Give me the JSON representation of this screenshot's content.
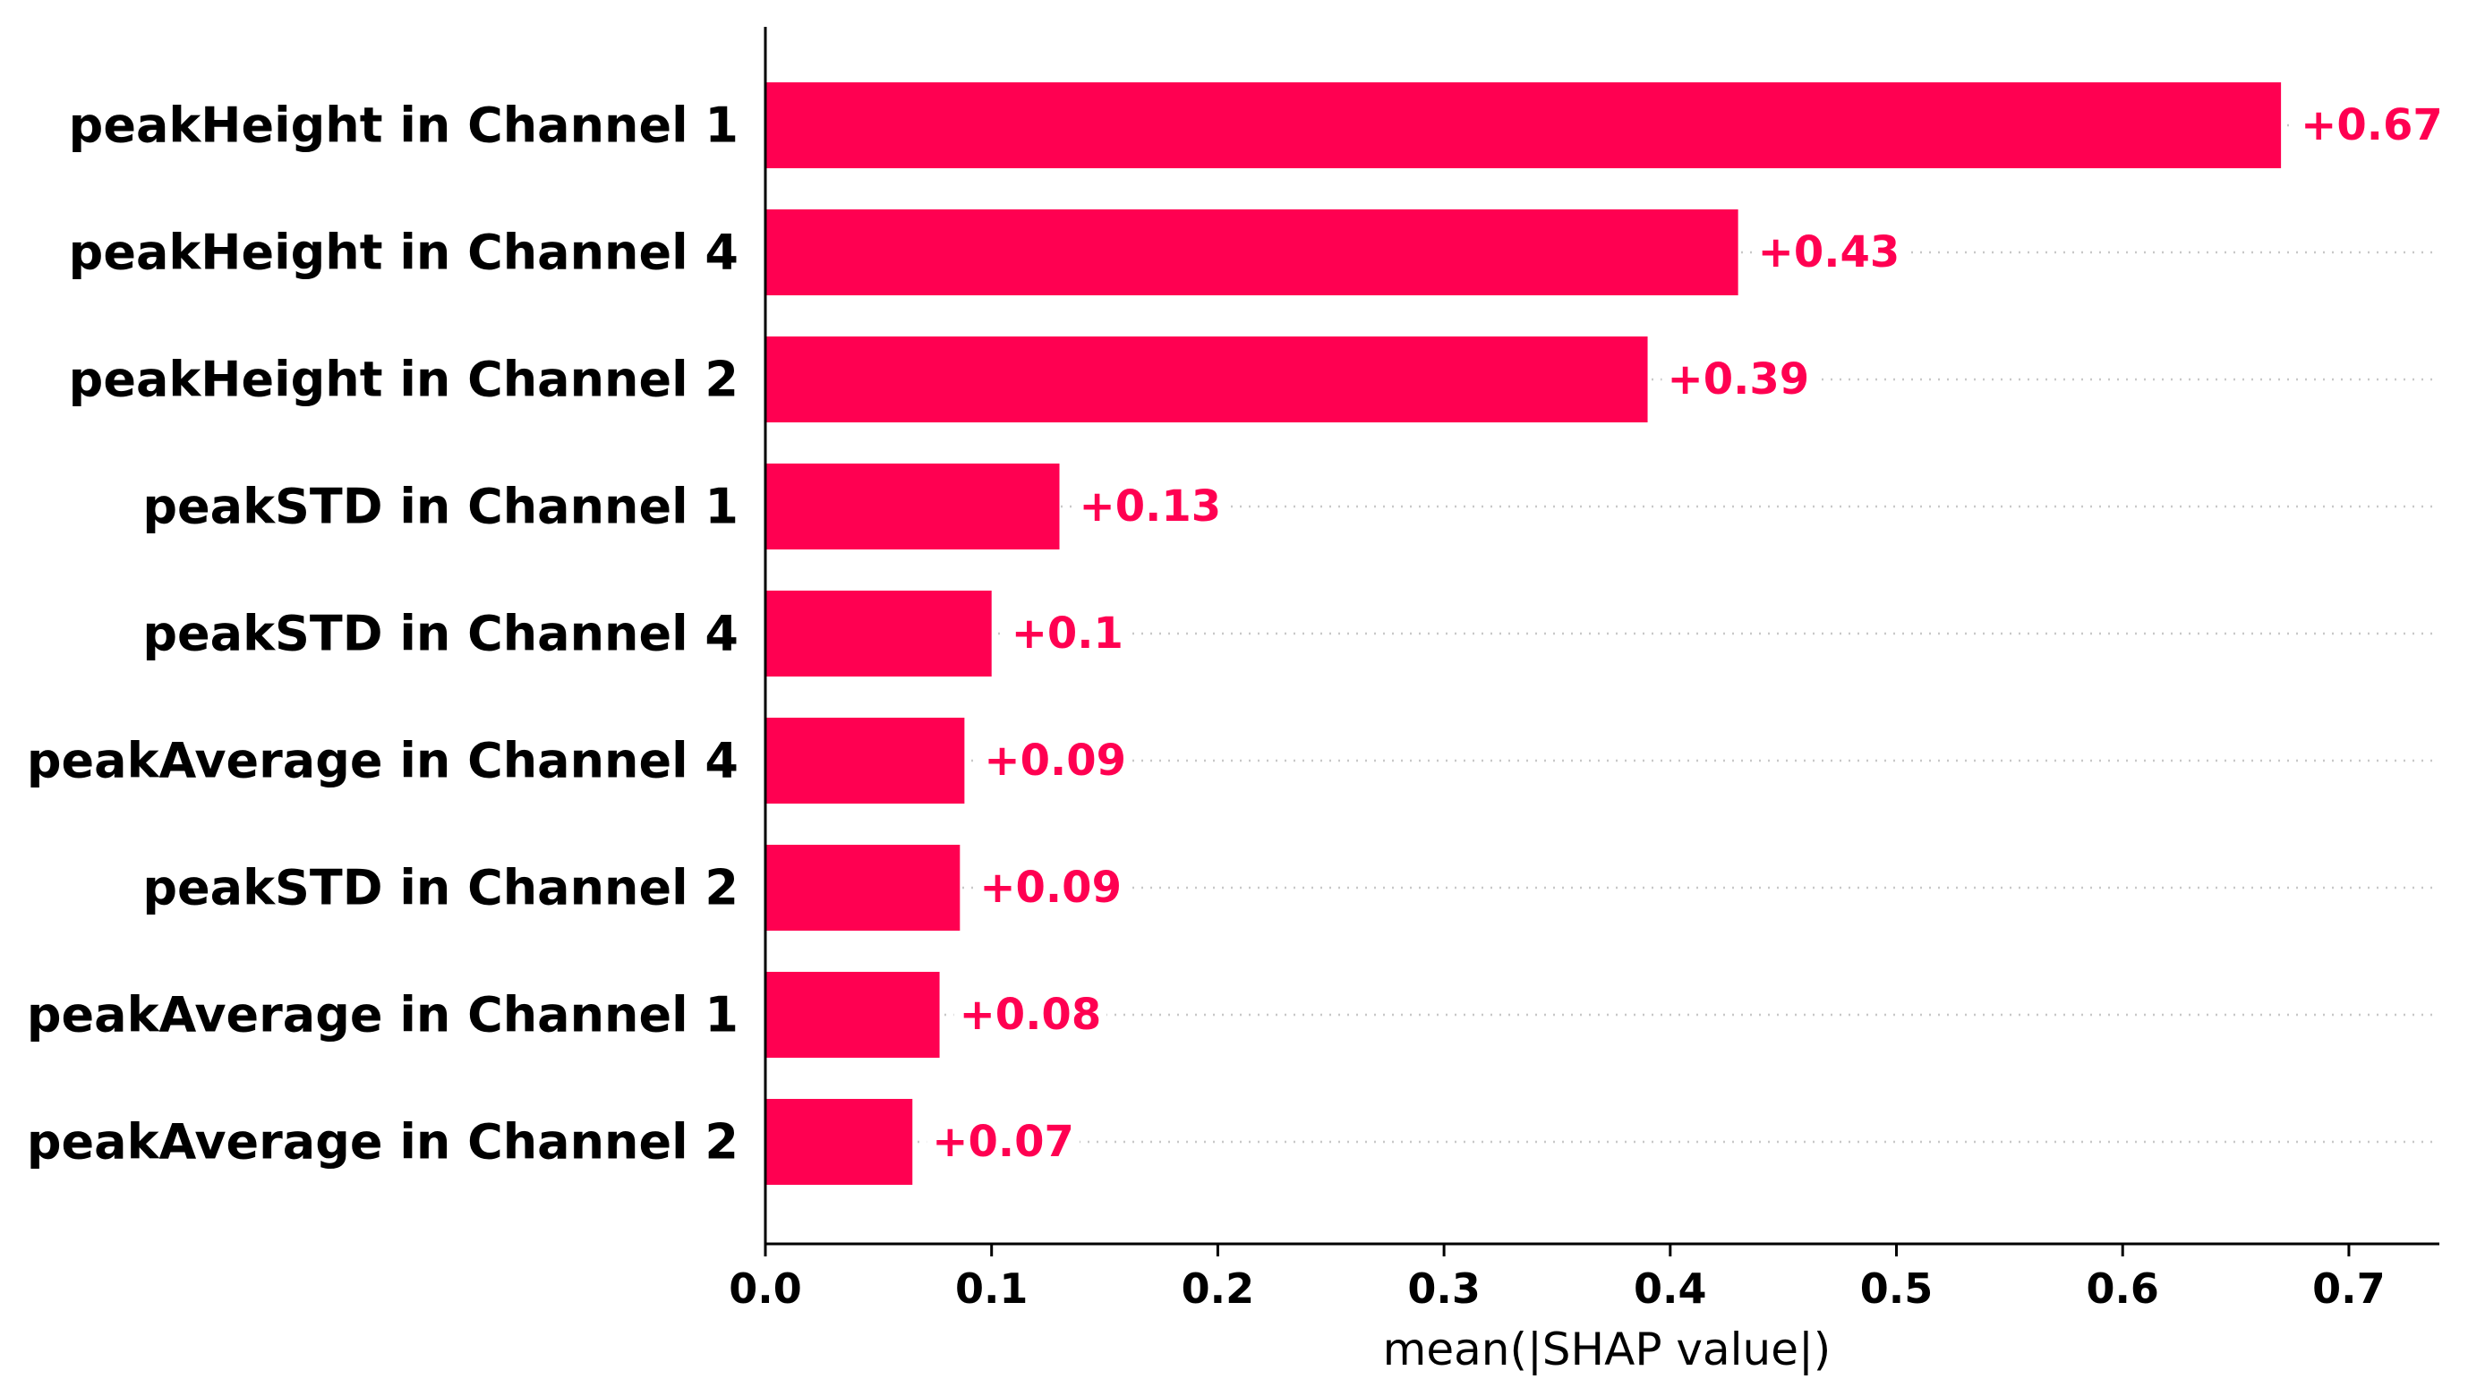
{
  "chart_data": {
    "type": "bar",
    "orientation": "horizontal",
    "categories": [
      "peakHeight in Channel 1",
      "peakHeight in Channel 4",
      "peakHeight in Channel 2",
      "peakSTD in Channel 1",
      "peakSTD in Channel 4",
      "peakAverage in Channel 4",
      "peakSTD in Channel 2",
      "peakAverage in Channel 1",
      "peakAverage in Channel 2"
    ],
    "values": [
      0.67,
      0.43,
      0.39,
      0.13,
      0.1,
      0.088,
      0.086,
      0.077,
      0.065
    ],
    "value_labels": [
      "+0.67",
      "+0.43",
      "+0.39",
      "+0.13",
      "+0.1",
      "+0.09",
      "+0.09",
      "+0.08",
      "+0.07"
    ],
    "xlabel": "mean(|SHAP value|)",
    "ylabel": "",
    "xlim": [
      0,
      0.74
    ],
    "xticks": [
      0.0,
      0.1,
      0.2,
      0.3,
      0.4,
      0.5,
      0.6,
      0.7
    ],
    "xtick_labels": [
      "0.0",
      "0.1",
      "0.2",
      "0.3",
      "0.4",
      "0.5",
      "0.6",
      "0.7"
    ],
    "grid": "dotted row guides",
    "bar_color": "#ff0051",
    "label_color": "#ff0051",
    "gridline_color": "#c8c8c8"
  }
}
